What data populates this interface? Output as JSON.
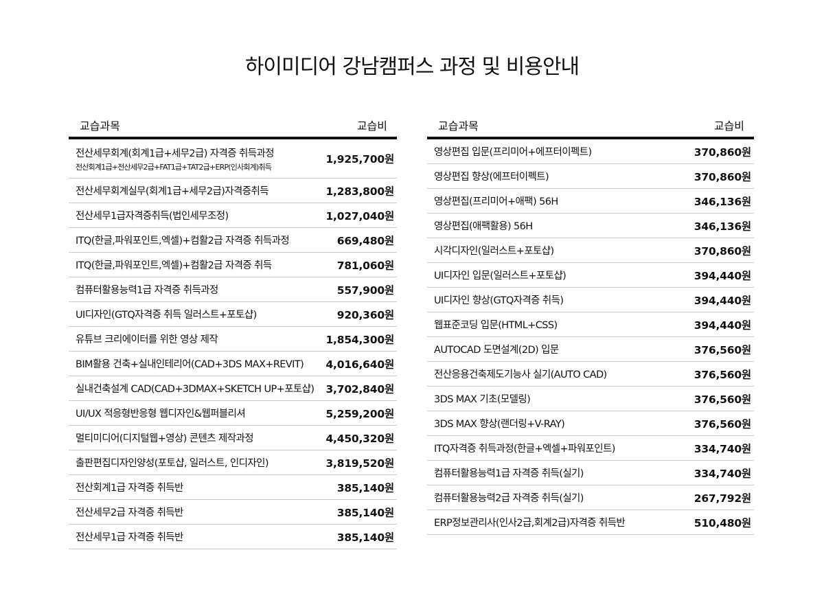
{
  "title": "하이미디어 강남캠퍼스 과정 및 비용안내",
  "left": {
    "header": {
      "course": "교습과목",
      "fee": "교습비"
    },
    "rows": [
      {
        "name": "전산세무회계(회계1급+세무2급) 자격증 취득과정",
        "sub": "전산회계1급+전산세무2급+FAT1급+TAT2급+ERP(인사회계)취득",
        "price": "1,925,700원"
      },
      {
        "name": "전산세무회계실무(회계1급+세무2급)자격증취득",
        "price": "1,283,800원"
      },
      {
        "name": "전산세무1급자격증취득(법인세무조정)",
        "price": "1,027,040원"
      },
      {
        "name": "ITQ(한글,파워포인트,엑셀)+컴활2급 자격증 취득과정",
        "price": "669,480원"
      },
      {
        "name": "ITQ(한글,파워포인트,엑셀)+컴활2급 자격증 취득",
        "price": "781,060원"
      },
      {
        "name": "컴퓨터활용능력1급 자격증 취득과정",
        "price": "557,900원"
      },
      {
        "name": "UI디자인(GTQ자격증 취득 일러스트+포토샵)",
        "price": "920,360원"
      },
      {
        "name": "유튜브 크리에이터를 위한 영상 제작",
        "price": "1,854,300원"
      },
      {
        "name": "BIM활용 건축+실내인테리어(CAD+3DS MAX+REVIT)",
        "price": "4,016,640원"
      },
      {
        "name": "실내건축설계 CAD(CAD+3DMAX+SKETCH UP+포토샵)",
        "price": "3,702,840원"
      },
      {
        "name": "UI/UX 적응형반응형 웹디자인&웹퍼블리셔",
        "price": "5,259,200원"
      },
      {
        "name": "멀티미디어(디지털웹+영상) 콘텐츠 제작과정",
        "price": "4,450,320원"
      },
      {
        "name": "출판편집디자인양성(포토샵, 일러스트, 인디자인)",
        "price": "3,819,520원"
      },
      {
        "name": "전산회계1급 자격증 취득반",
        "price": "385,140원"
      },
      {
        "name": "전산세무2급 자격증 취득반",
        "price": "385,140원"
      },
      {
        "name": "전산세무1급 자격증 취득반",
        "price": "385,140원"
      }
    ]
  },
  "right": {
    "header": {
      "course": "교습과목",
      "fee": "교습비"
    },
    "rows": [
      {
        "name": "영상편집 입문(프리미어+에프터이펙트)",
        "price": "370,860원"
      },
      {
        "name": "영상편집 향상(에프터이펙트)",
        "price": "370,860원"
      },
      {
        "name": "영상편집(프리미어+애팩) 56H",
        "price": "346,136원"
      },
      {
        "name": "영상편집(애팩활용) 56H",
        "price": "346,136원"
      },
      {
        "name": "시각디자인(일러스트+포토샵)",
        "price": "370,860원"
      },
      {
        "name": "UI디자인 입문(일러스트+포토샵)",
        "price": "394,440원"
      },
      {
        "name": "UI디자인 향상(GTQ자격증 취득)",
        "price": "394,440원"
      },
      {
        "name": "웹표준코딩 입문(HTML+CSS)",
        "price": "394,440원"
      },
      {
        "name": "AUTOCAD 도면설계(2D) 입문",
        "price": "376,560원"
      },
      {
        "name": "전산응용건축제도기능사 실기(AUTO CAD)",
        "price": "376,560원"
      },
      {
        "name": "3DS MAX 기초(모델링)",
        "price": "376,560원"
      },
      {
        "name": "3DS MAX 향상(랜더링+V-RAY)",
        "price": "376,560원"
      },
      {
        "name": "ITQ자격증 취득과정(한글+엑셀+파워포인트)",
        "price": "334,740원"
      },
      {
        "name": "컴퓨터활용능력1급 자격증 취득(실기)",
        "price": "334,740원"
      },
      {
        "name": "컴퓨터활용능력2급 자격증 취득(실기)",
        "price": "267,792원"
      },
      {
        "name": "ERP정보관리사(인사2급,회계2급)자격증 취득반",
        "price": "510,480원"
      }
    ]
  }
}
